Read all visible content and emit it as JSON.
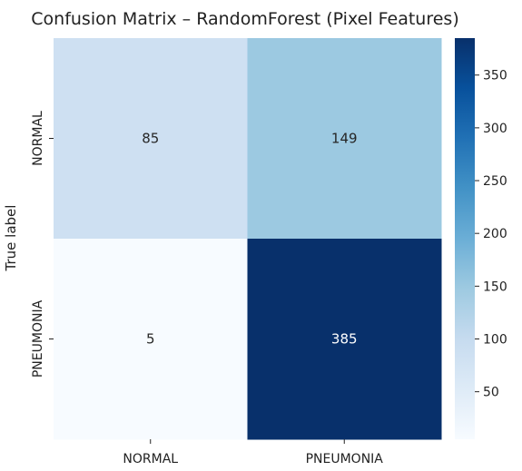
{
  "chart_data": {
    "type": "heatmap",
    "title": "Confusion Matrix – RandomForest (Pixel Features)",
    "ylabel": "True label",
    "xlabel": "",
    "x_categories": [
      "NORMAL",
      "PNEUMONIA"
    ],
    "y_categories": [
      "NORMAL",
      "PNEUMONIA"
    ],
    "matrix": [
      [
        85,
        149
      ],
      [
        5,
        385
      ]
    ],
    "colormap": "Blues",
    "colorbar": {
      "range": [
        5,
        385
      ],
      "ticks": [
        50,
        100,
        150,
        200,
        250,
        300,
        350
      ]
    },
    "colors": {
      "low": "#f7fbff",
      "high": "#08306b",
      "dark_text": "#262626",
      "light_text": "#ffffff"
    }
  }
}
